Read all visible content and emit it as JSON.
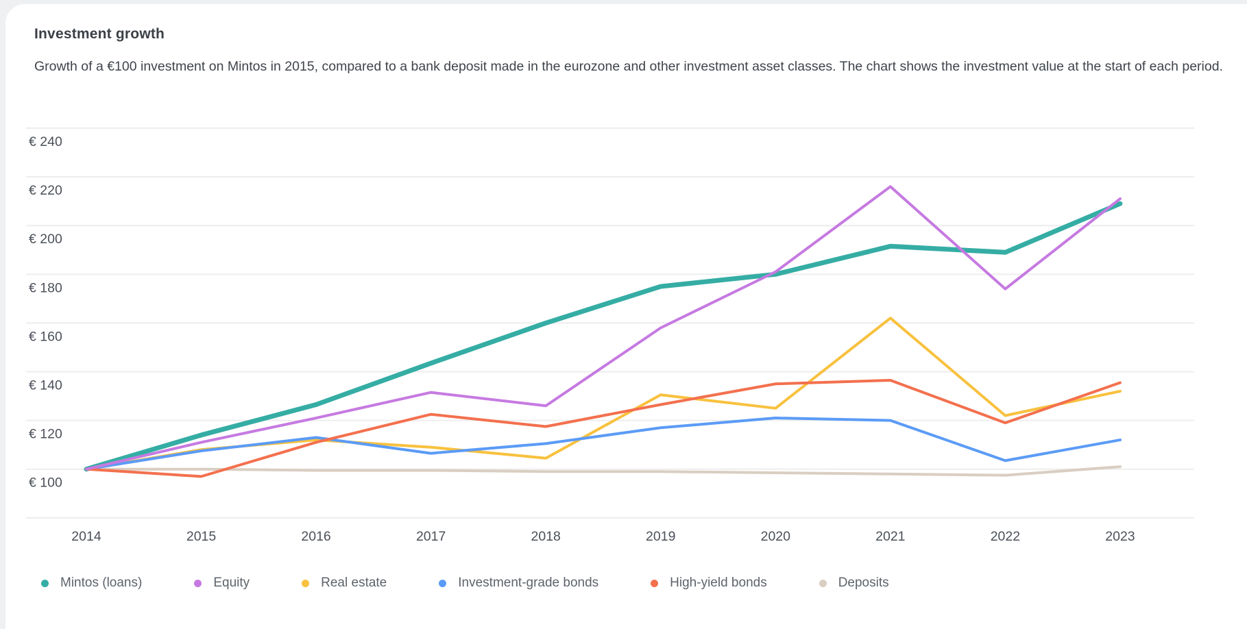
{
  "card": {
    "title": "Investment growth",
    "subtitle": "Growth of a €100 investment on Mintos in 2015, compared to a bank deposit made in the eurozone and other investment asset classes. The chart shows the investment value at the start of each period."
  },
  "chart_data": {
    "type": "line",
    "x": [
      "2014",
      "2015",
      "2016",
      "2017",
      "2018",
      "2019",
      "2020",
      "2021",
      "2022",
      "2023"
    ],
    "series": [
      {
        "name": "Mintos (loans)",
        "color": "#35ada4",
        "line_width": 7,
        "values": [
          100,
          114,
          126.5,
          143.5,
          160,
          175,
          180,
          191.5,
          189,
          209
        ]
      },
      {
        "name": "Equity",
        "color": "#c67ae1",
        "line_width": 4,
        "values": [
          100,
          111,
          121,
          131.5,
          126,
          158,
          181,
          216,
          174,
          211
        ]
      },
      {
        "name": "Real estate",
        "color": "#f8c13e",
        "line_width": 4,
        "values": [
          100,
          108,
          112,
          109,
          104.5,
          130.5,
          125,
          162,
          122,
          132
        ]
      },
      {
        "name": "Investment-grade bonds",
        "color": "#5b9bf6",
        "line_width": 4,
        "values": [
          100,
          107.5,
          113,
          106.5,
          110.5,
          117,
          121,
          120,
          103.5,
          112
        ]
      },
      {
        "name": "High-yield bonds",
        "color": "#f3704e",
        "line_width": 4,
        "values": [
          100,
          97,
          111,
          122.5,
          117.5,
          126.5,
          135,
          136.5,
          119,
          135.5
        ]
      },
      {
        "name": "Deposits",
        "color": "#d9cec1",
        "line_width": 4,
        "values": [
          100,
          100,
          99.5,
          99.5,
          99,
          99,
          98.5,
          98,
          97.5,
          101
        ]
      }
    ],
    "y_ticks": [
      240,
      220,
      200,
      180,
      160,
      140,
      120,
      100
    ],
    "y_tick_prefix": "€ ",
    "y_baseline": 80,
    "ylim": [
      80,
      252
    ],
    "grid": true,
    "legend_position": "bottom",
    "colors": {
      "grid": "#ededee",
      "axis_label": "#4b5058",
      "legend_text": "#5d636b"
    }
  }
}
